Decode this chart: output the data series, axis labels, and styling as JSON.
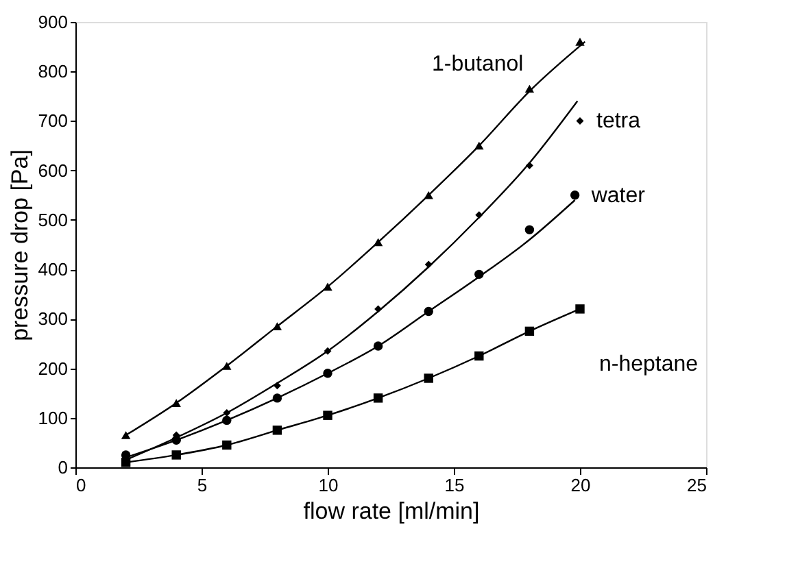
{
  "chart_data": {
    "type": "scatter",
    "xlabel": "flow rate [ml/min]",
    "ylabel": "pressure drop [Pa]",
    "xlim": [
      0,
      25
    ],
    "xticks": [
      0,
      5,
      10,
      15,
      20,
      25
    ],
    "ylim": [
      0,
      900
    ],
    "yticks": [
      0,
      100,
      200,
      300,
      400,
      500,
      600,
      700,
      800,
      900
    ],
    "series": [
      {
        "name": "1-butanol",
        "color": "#000000",
        "marker": "triangle",
        "x": [
          2,
          4,
          6,
          8,
          10,
          12,
          14,
          16,
          18,
          20
        ],
        "values": [
          65,
          130,
          205,
          285,
          365,
          455,
          550,
          650,
          765,
          860
        ]
      },
      {
        "name": "tetra",
        "color": "#000000",
        "marker": "diamond",
        "x": [
          4,
          6,
          8,
          10,
          12,
          14,
          16,
          18,
          20
        ],
        "values": [
          65,
          110,
          165,
          235,
          320,
          410,
          510,
          610,
          700
        ]
      },
      {
        "name": "water",
        "color": "#000000",
        "marker": "circle",
        "x": [
          2,
          4,
          6,
          8,
          10,
          12,
          14,
          16,
          18,
          19.8
        ],
        "values": [
          25,
          55,
          95,
          140,
          190,
          245,
          315,
          390,
          480,
          550
        ]
      },
      {
        "name": "n-heptane",
        "color": "#000000",
        "marker": "square",
        "x": [
          2,
          4,
          6,
          8,
          10,
          12,
          14,
          16,
          18,
          20
        ],
        "values": [
          10,
          25,
          45,
          75,
          105,
          140,
          180,
          225,
          275,
          320
        ]
      },
      {
        "type": "line",
        "color": "#000000",
        "marker": "none",
        "line_style": "solid",
        "x": [
          2,
          4,
          6,
          8,
          10,
          12,
          14,
          16,
          18,
          20.2
        ],
        "values": [
          65,
          130,
          205,
          285,
          365,
          455,
          550,
          650,
          760,
          860
        ]
      },
      {
        "type": "line",
        "color": "#000000",
        "marker": "none",
        "line_style": "solid",
        "x": [
          2,
          4,
          6,
          8,
          10,
          12,
          14,
          16,
          18,
          19.9
        ],
        "values": [
          15,
          60,
          110,
          170,
          235,
          315,
          405,
          505,
          615,
          740
        ]
      },
      {
        "type": "line",
        "color": "#000000",
        "marker": "none",
        "line_style": "solid",
        "x": [
          2,
          4,
          6,
          8,
          10,
          12,
          14,
          16,
          18,
          19.8
        ],
        "values": [
          20,
          55,
          95,
          140,
          190,
          245,
          315,
          385,
          460,
          540
        ]
      },
      {
        "type": "line",
        "color": "#000000",
        "marker": "none",
        "line_style": "solid",
        "x": [
          2,
          4,
          6,
          8,
          10,
          12,
          14,
          16,
          18,
          20
        ],
        "values": [
          10,
          25,
          45,
          75,
          105,
          140,
          180,
          225,
          275,
          320
        ]
      }
    ]
  }
}
